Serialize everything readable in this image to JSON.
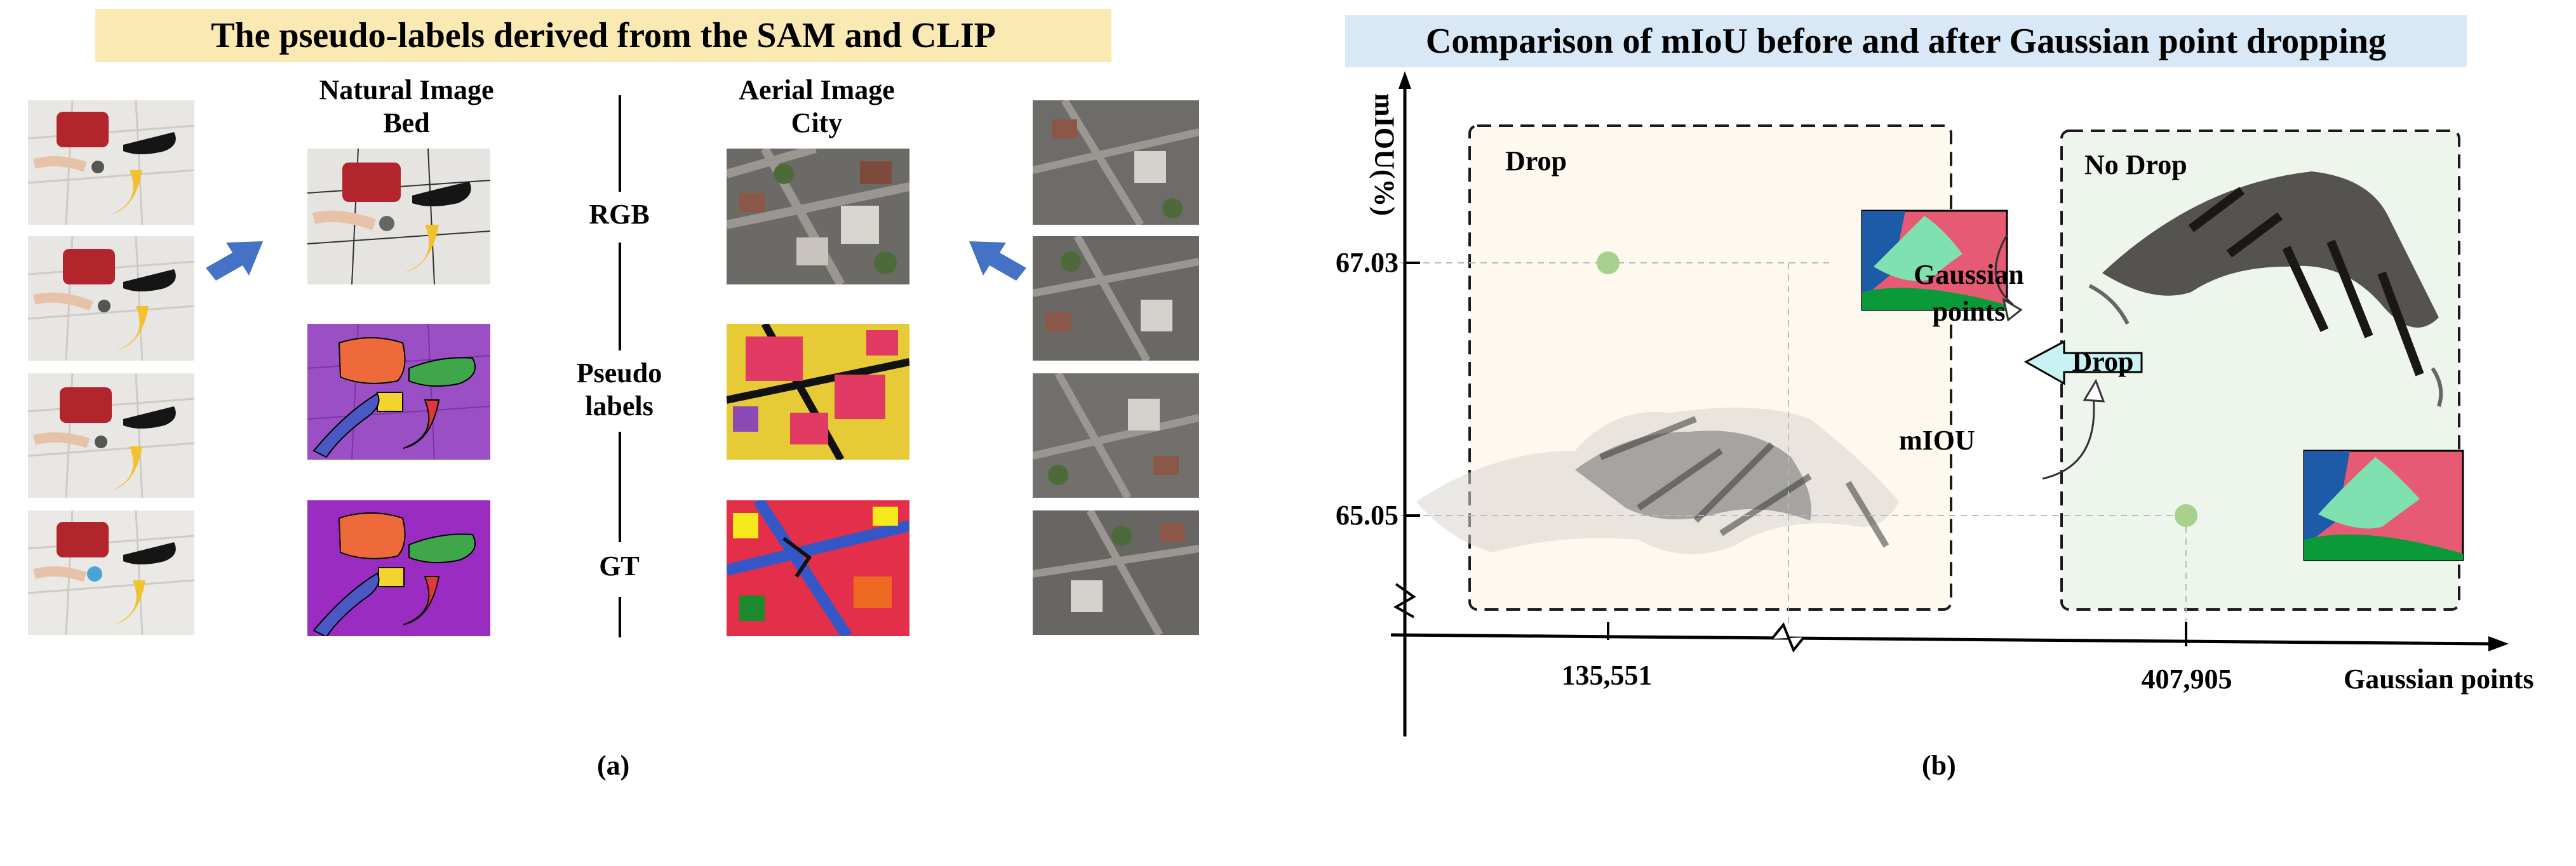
{
  "panel_a": {
    "title": "The pseudo-labels derived from the SAM and CLIP",
    "natural_header": {
      "line1": "Natural Image",
      "line2": "Bed"
    },
    "aerial_header": {
      "line1": "Aerial Image",
      "line2": "City"
    },
    "rows": {
      "rgb": "RGB",
      "pseudo_line1": "Pseudo",
      "pseudo_line2": "labels",
      "gt": "GT"
    },
    "caption": "(a)",
    "colors": {
      "accent_arrow": "#4472c4",
      "title_bg": "#fbe9b4"
    }
  },
  "panel_b": {
    "title": "Comparison of mIoU before and after Gaussian point dropping",
    "y_axis_label": "mIOU(%)",
    "x_axis_label": "Gaussian points",
    "drop_box_label": "Drop",
    "nodrop_box_label": "No Drop",
    "middle_text": {
      "gaussian_line1": "Gaussian",
      "gaussian_line2": "points",
      "drop_button": "Drop",
      "miou": "mIOU"
    },
    "caption": "(b)",
    "colors": {
      "point": "#a9d18e",
      "drop_bg": "#fdf9ef",
      "nodrop_bg": "#eef5ec",
      "arrow_fill": "#c9f2f5",
      "title_bg": "#d9e8f6"
    }
  },
  "chart_data": {
    "type": "scatter",
    "title": "Comparison of mIoU before and after Gaussian point dropping",
    "xlabel": "Gaussian points",
    "ylabel": "mIOU(%)",
    "x_ticks": [
      "135,551",
      "407,905"
    ],
    "y_ticks": [
      "67.03",
      "65.05"
    ],
    "series": [
      {
        "name": "Drop",
        "x": [
          135551
        ],
        "y": [
          67.03
        ]
      },
      {
        "name": "No Drop",
        "x": [
          407905
        ],
        "y": [
          65.05
        ]
      }
    ]
  }
}
